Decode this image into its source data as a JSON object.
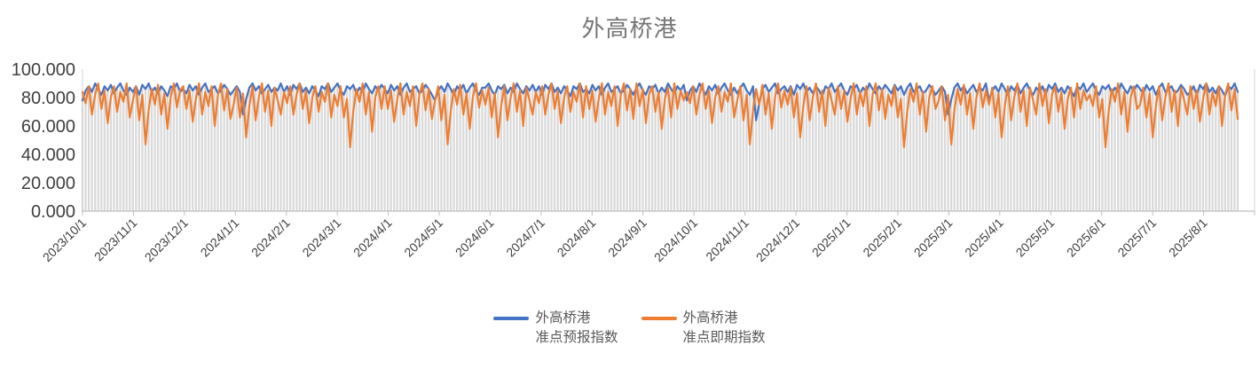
{
  "chart_data": {
    "type": "line",
    "title": "外高桥港",
    "x_ticks": [
      "2023/10/1",
      "2023/11/1",
      "2023/12/1",
      "2024/1/1",
      "2024/2/1",
      "2024/3/1",
      "2024/4/1",
      "2024/5/1",
      "2024/6/1",
      "2024/7/1",
      "2024/8/1",
      "2024/9/1",
      "2024/10/1",
      "2024/11/1",
      "2024/12/1",
      "2025/1/1",
      "2025/2/1",
      "2025/3/1",
      "2025/4/1",
      "2025/5/1",
      "2025/6/1",
      "2025/7/1",
      "2025/8/1"
    ],
    "y_ticks": [
      0,
      20,
      40,
      60,
      80,
      100
    ],
    "y_tick_labels": [
      "0.000",
      "20.000",
      "40.000",
      "60.000",
      "80.000",
      "100.000"
    ],
    "ylim": [
      0,
      100
    ],
    "grid": false,
    "legend_position": "bottom",
    "drop_lines": true,
    "colors": {
      "drop_line": "#D9D9D9",
      "axis_line": "#D9D9D9",
      "tick_mark": "#BFBFBF",
      "axis_label": "#404040",
      "title": "#767676",
      "legend_text": "#595959"
    },
    "series": [
      {
        "name": "外高桥港\n准点预报指数",
        "color": "#4472C4",
        "values": [
          78,
          85,
          88,
          84,
          90,
          86,
          82,
          88,
          85,
          89,
          83,
          87,
          90,
          85,
          82,
          87,
          84,
          88,
          82,
          89,
          86,
          90,
          84,
          87,
          83,
          88,
          85,
          81,
          88,
          86,
          90,
          84,
          86,
          83,
          89,
          85,
          88,
          82,
          87,
          90,
          84,
          86,
          88,
          83,
          85,
          89,
          86,
          82,
          85,
          88,
          84,
          68,
          79,
          87,
          90,
          85,
          88,
          83,
          86,
          89,
          84,
          87,
          85,
          90,
          84,
          88,
          82,
          89,
          86,
          90,
          84,
          87,
          83,
          88,
          85,
          81,
          88,
          86,
          90,
          84,
          87,
          90,
          85,
          82,
          88,
          86,
          89,
          83,
          87,
          84,
          90,
          86,
          83,
          88,
          85,
          89,
          86,
          83,
          89,
          85,
          88,
          82,
          87,
          90,
          84,
          86,
          88,
          83,
          85,
          89,
          86,
          82,
          78,
          85,
          88,
          84,
          90,
          86,
          82,
          88,
          85,
          89,
          83,
          87,
          90,
          85,
          82,
          87,
          87,
          90,
          85,
          82,
          88,
          86,
          89,
          83,
          87,
          84,
          90,
          86,
          83,
          88,
          85,
          89,
          84,
          88,
          82,
          89,
          86,
          90,
          84,
          87,
          83,
          88,
          85,
          81,
          88,
          86,
          90,
          84,
          86,
          83,
          89,
          85,
          88,
          82,
          87,
          90,
          84,
          86,
          88,
          83,
          85,
          89,
          86,
          82,
          87,
          90,
          85,
          82,
          88,
          86,
          89,
          83,
          87,
          84,
          90,
          86,
          83,
          88,
          85,
          89,
          78,
          85,
          88,
          84,
          90,
          86,
          82,
          88,
          85,
          89,
          83,
          87,
          90,
          85,
          82,
          87,
          83,
          87,
          90,
          85,
          82,
          88,
          64,
          76,
          86,
          89,
          84,
          87,
          90,
          83,
          86,
          88,
          84,
          88,
          82,
          89,
          86,
          90,
          84,
          87,
          83,
          88,
          85,
          81,
          88,
          86,
          90,
          84,
          87,
          90,
          85,
          82,
          88,
          86,
          89,
          83,
          87,
          84,
          90,
          86,
          83,
          88,
          85,
          89,
          86,
          83,
          89,
          85,
          88,
          82,
          87,
          90,
          84,
          86,
          88,
          83,
          85,
          89,
          86,
          82,
          85,
          88,
          84,
          68,
          79,
          87,
          90,
          85,
          88,
          83,
          86,
          89,
          84,
          87,
          85,
          90,
          78,
          85,
          88,
          84,
          90,
          86,
          82,
          88,
          85,
          89,
          83,
          87,
          90,
          85,
          82,
          87,
          84,
          88,
          82,
          89,
          86,
          90,
          84,
          87,
          83,
          88,
          85,
          81,
          88,
          86,
          90,
          84,
          87,
          90,
          85,
          82,
          88,
          86,
          89,
          83,
          87,
          84,
          90,
          86,
          83,
          88,
          85,
          89,
          86,
          83,
          89,
          85,
          88,
          82,
          87,
          90,
          84,
          86,
          88,
          83,
          85,
          89,
          86,
          82,
          84,
          88,
          82,
          89,
          86,
          90,
          84,
          87,
          83,
          88,
          85,
          81,
          88,
          86,
          90,
          84
        ]
      },
      {
        "name": "外高桥港\n准点即期指数",
        "color": "#ED7D31",
        "values": [
          84,
          76,
          88,
          68,
          82,
          90,
          72,
          85,
          62,
          80,
          88,
          70,
          84,
          77,
          90,
          66,
          78,
          88,
          64,
          82,
          47,
          71,
          86,
          75,
          89,
          68,
          83,
          58,
          80,
          90,
          73,
          85,
          88,
          72,
          85,
          63,
          79,
          90,
          68,
          84,
          74,
          88,
          60,
          82,
          90,
          71,
          86,
          65,
          75,
          87,
          66,
          83,
          52,
          74,
          88,
          64,
          80,
          90,
          70,
          85,
          60,
          87,
          78,
          68,
          84,
          76,
          88,
          68,
          82,
          90,
          72,
          85,
          62,
          80,
          88,
          70,
          84,
          77,
          90,
          66,
          82,
          74,
          88,
          66,
          79,
          45,
          70,
          86,
          77,
          90,
          68,
          84,
          56,
          80,
          88,
          72,
          88,
          72,
          85,
          63,
          79,
          90,
          68,
          84,
          74,
          88,
          60,
          82,
          90,
          71,
          86,
          65,
          78,
          88,
          64,
          82,
          47,
          71,
          86,
          75,
          89,
          68,
          83,
          58,
          80,
          90,
          73,
          85,
          75,
          87,
          66,
          83,
          52,
          74,
          88,
          64,
          80,
          90,
          70,
          85,
          60,
          87,
          78,
          68,
          84,
          76,
          88,
          68,
          82,
          90,
          72,
          85,
          62,
          80,
          88,
          70,
          84,
          77,
          90,
          66,
          88,
          72,
          85,
          63,
          79,
          90,
          68,
          84,
          74,
          88,
          60,
          82,
          90,
          71,
          86,
          65,
          90,
          74,
          86,
          62,
          82,
          88,
          70,
          84,
          58,
          79,
          87,
          66,
          90,
          72,
          85,
          78,
          84,
          76,
          88,
          68,
          82,
          90,
          72,
          85,
          62,
          80,
          88,
          70,
          84,
          77,
          90,
          66,
          78,
          88,
          64,
          82,
          47,
          71,
          86,
          75,
          89,
          68,
          83,
          58,
          80,
          90,
          73,
          85,
          75,
          87,
          66,
          83,
          52,
          74,
          88,
          64,
          80,
          90,
          70,
          85,
          60,
          87,
          78,
          68,
          88,
          72,
          85,
          63,
          79,
          90,
          68,
          84,
          74,
          88,
          60,
          82,
          90,
          71,
          86,
          65,
          82,
          74,
          88,
          66,
          79,
          45,
          70,
          86,
          77,
          90,
          68,
          84,
          56,
          80,
          88,
          72,
          78,
          88,
          64,
          82,
          47,
          71,
          86,
          75,
          89,
          68,
          83,
          58,
          80,
          90,
          73,
          85,
          75,
          87,
          66,
          83,
          52,
          74,
          88,
          64,
          80,
          90,
          70,
          85,
          60,
          87,
          78,
          68,
          90,
          74,
          86,
          62,
          82,
          88,
          70,
          84,
          58,
          79,
          87,
          66,
          90,
          72,
          85,
          78,
          82,
          74,
          88,
          66,
          79,
          45,
          70,
          86,
          77,
          90,
          68,
          84,
          56,
          80,
          88,
          72,
          75,
          87,
          66,
          83,
          52,
          74,
          88,
          64,
          80,
          90,
          70,
          85,
          60,
          87,
          78,
          68,
          88,
          72,
          85,
          63,
          79,
          90,
          68,
          84,
          74,
          88,
          60,
          82,
          90,
          71,
          86,
          65
        ]
      }
    ]
  }
}
